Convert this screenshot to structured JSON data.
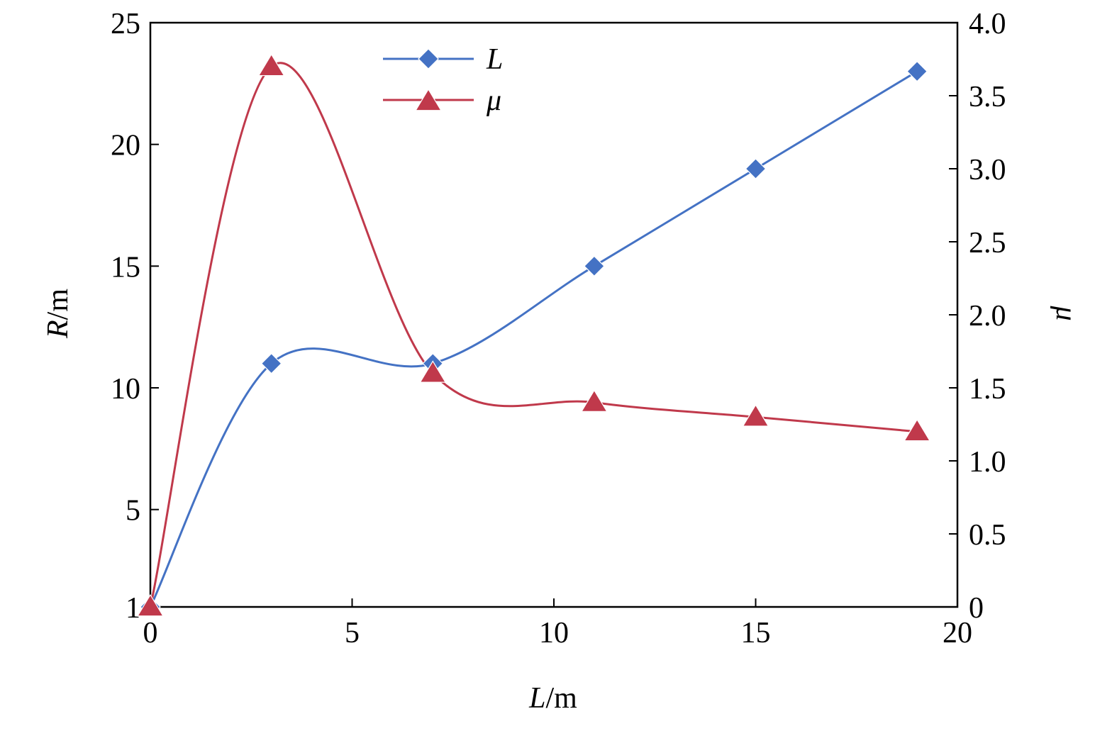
{
  "chart_data": {
    "type": "line",
    "x": [
      0,
      3,
      7,
      11,
      15,
      19
    ],
    "xlim": [
      0,
      20
    ],
    "xticks": [
      0,
      5,
      10,
      15,
      20
    ],
    "xtick_labels": [
      "0",
      "5",
      "10",
      "15",
      "20"
    ],
    "xlabel": {
      "var": "L",
      "unit": "/m"
    },
    "y_left": {
      "label": {
        "var": "R",
        "unit": "/m"
      },
      "lim": [
        1,
        25
      ],
      "ticks": [
        1,
        5,
        10,
        15,
        20,
        25
      ],
      "tick_labels": [
        "1",
        "5",
        "10",
        "15",
        "20",
        "25"
      ]
    },
    "y_right": {
      "label": {
        "var": "μ",
        "unit": ""
      },
      "lim": [
        0,
        4.0
      ],
      "ticks": [
        0,
        0.5,
        1.0,
        1.5,
        2.0,
        2.5,
        3.0,
        3.5,
        4.0
      ],
      "tick_labels": [
        "0",
        "0.5",
        "1.0",
        "1.5",
        "2.0",
        "2.5",
        "3.0",
        "3.5",
        "4.0"
      ]
    },
    "series": [
      {
        "name": "L",
        "axis": "left",
        "marker": "diamond",
        "color": "#4472C4",
        "values": [
          1,
          11,
          11,
          15,
          19,
          23
        ]
      },
      {
        "name": "μ",
        "axis": "right",
        "marker": "triangle",
        "color": "#C0394B",
        "values": [
          0,
          3.7,
          1.6,
          1.4,
          1.3,
          1.2
        ]
      }
    ],
    "legend_position": "top-center",
    "grid": false
  }
}
